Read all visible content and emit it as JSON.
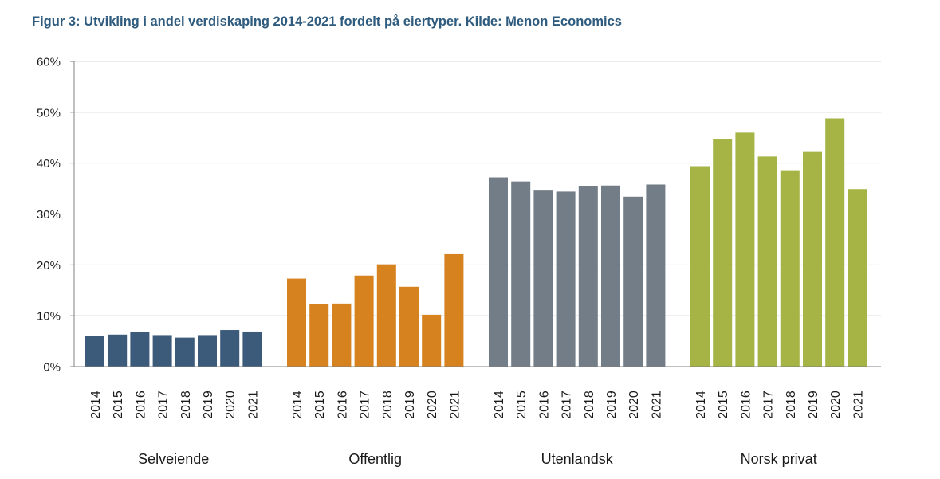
{
  "caption": "Figur 3: Utvikling i andel verdiskaping 2014-2021 fordelt på eiertyper. Kilde: Menon Economics",
  "chart_data": {
    "type": "bar",
    "title": "",
    "xlabel": "",
    "ylabel": "",
    "ylim": [
      0,
      60
    ],
    "y_ticks": [
      "0%",
      "10%",
      "20%",
      "30%",
      "40%",
      "50%",
      "60%"
    ],
    "y_unit": "%",
    "grid": true,
    "legend": "none",
    "years": [
      "2014",
      "2015",
      "2016",
      "2017",
      "2018",
      "2019",
      "2020",
      "2021"
    ],
    "groups": [
      {
        "label": "Selveiende",
        "color": "#3c5a7a",
        "values": [
          6.0,
          6.3,
          6.8,
          6.2,
          5.7,
          6.2,
          7.2,
          6.9
        ]
      },
      {
        "label": "Offentlig",
        "color": "#d6821f",
        "values": [
          17.3,
          12.3,
          12.4,
          17.9,
          20.1,
          15.7,
          10.2,
          22.1
        ]
      },
      {
        "label": "Utenlandsk",
        "color": "#737d87",
        "values": [
          37.2,
          36.4,
          34.6,
          34.4,
          35.5,
          35.6,
          33.4,
          35.8
        ]
      },
      {
        "label": "Norsk privat",
        "color": "#a5b445",
        "values": [
          39.4,
          44.7,
          46.0,
          41.3,
          38.6,
          42.2,
          48.8,
          34.9
        ]
      }
    ]
  }
}
